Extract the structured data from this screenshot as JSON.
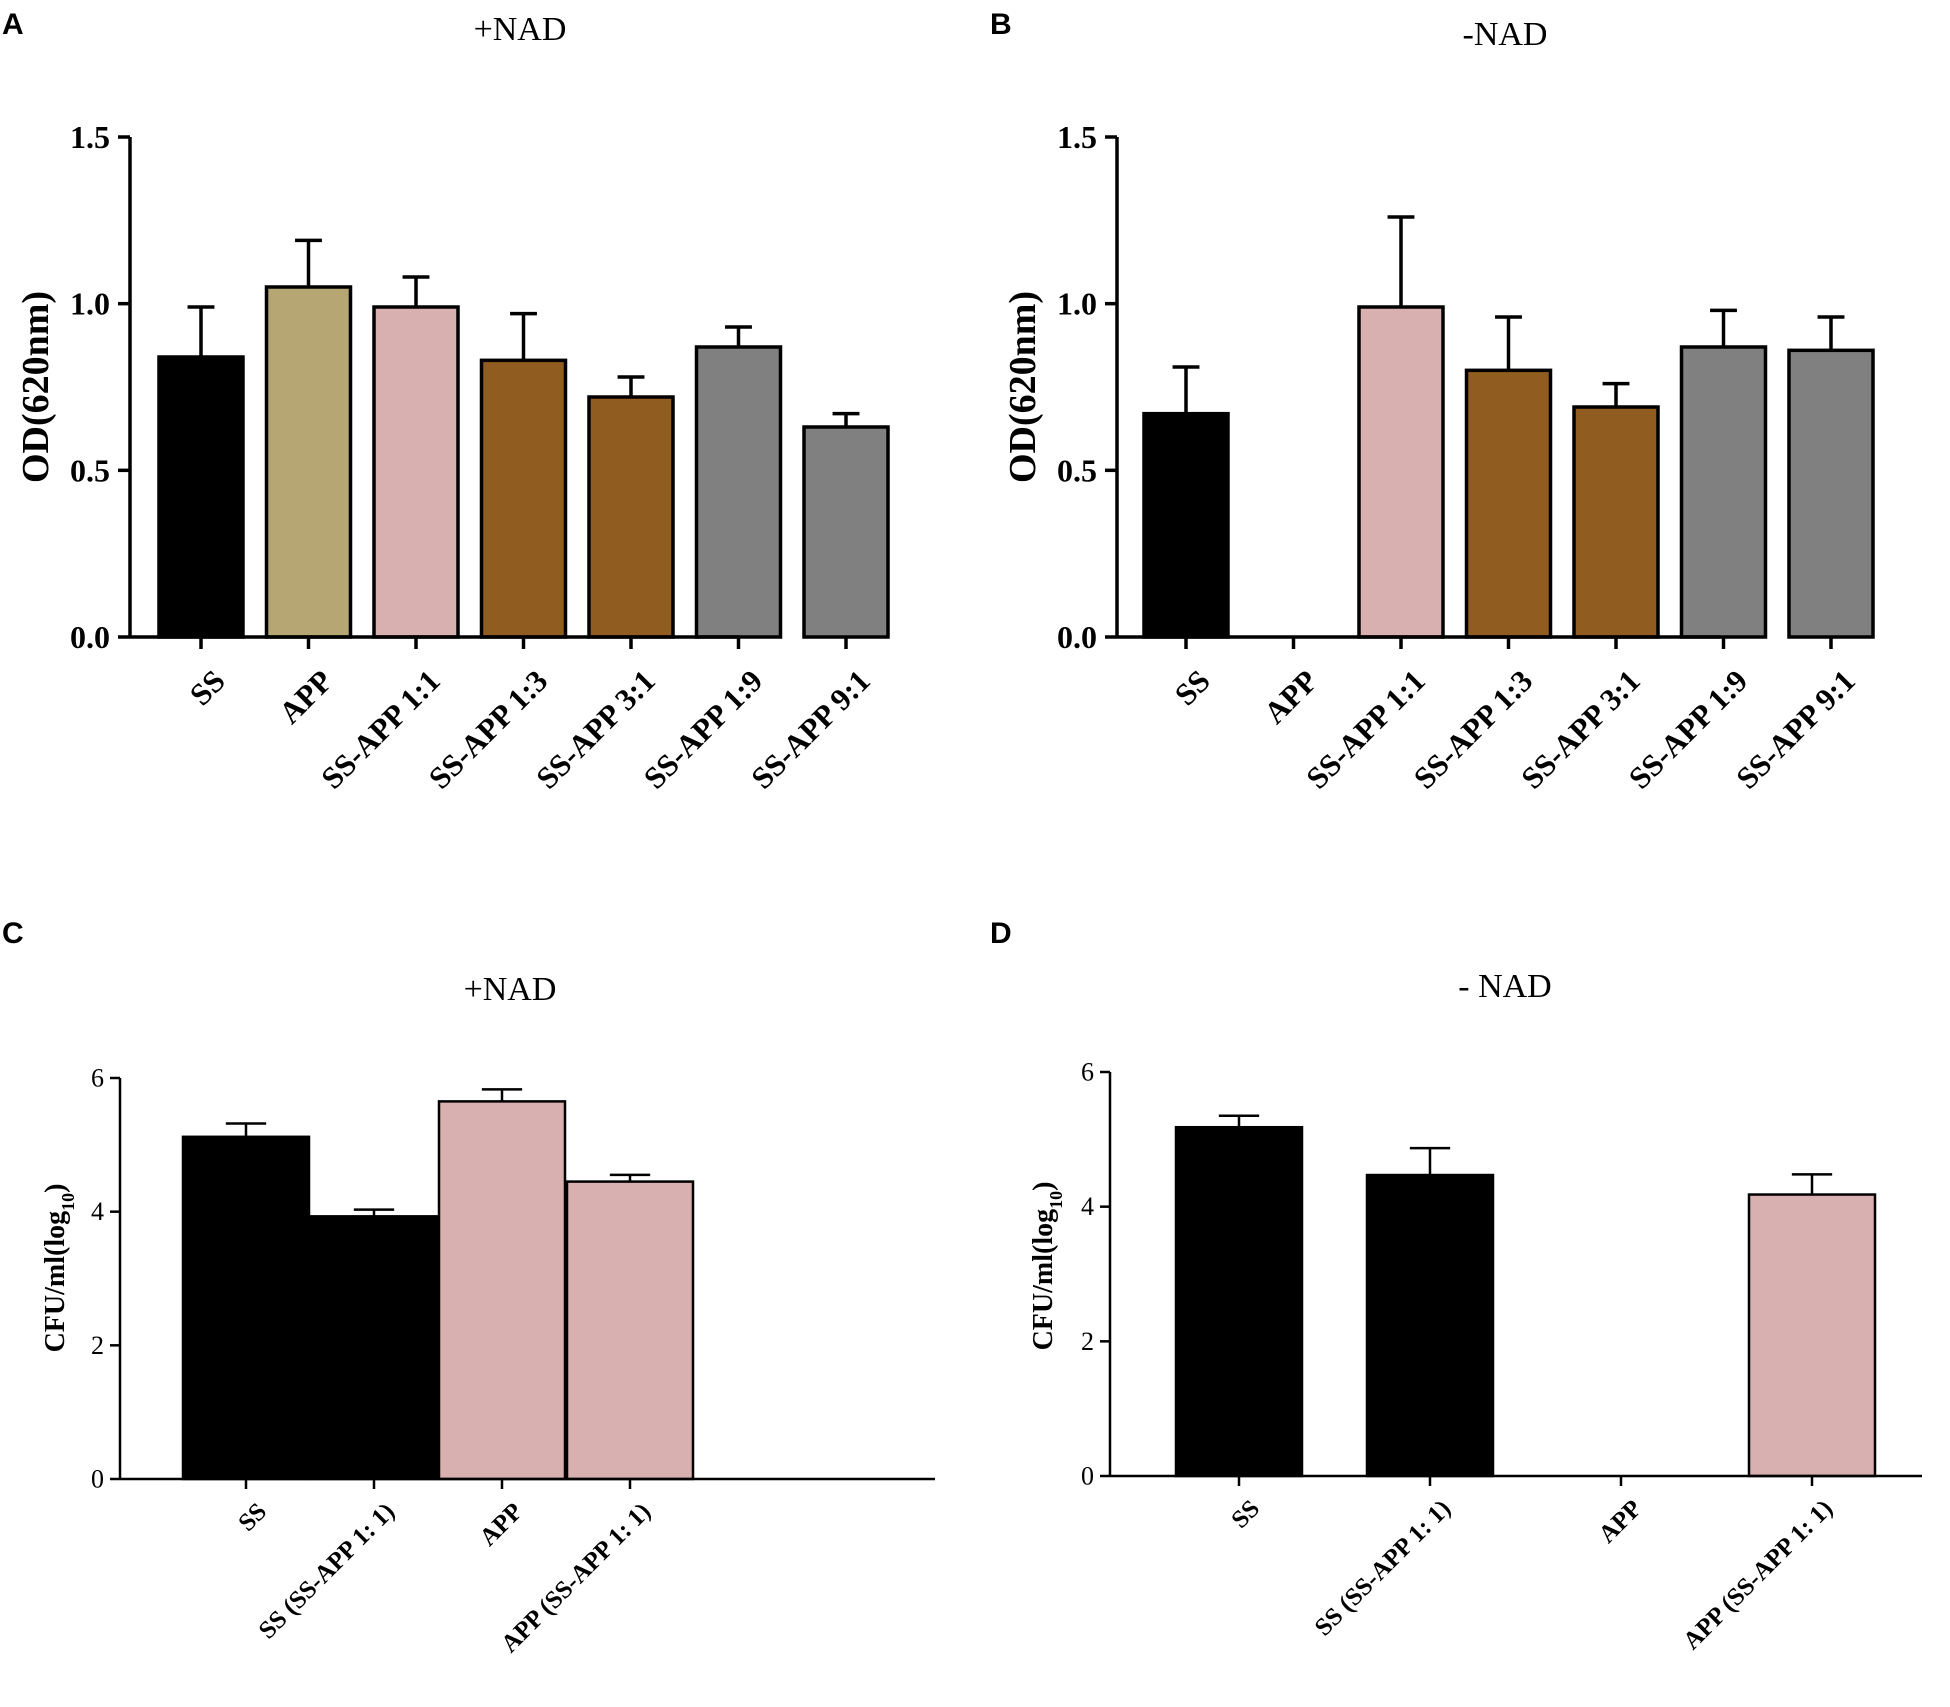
{
  "figure": {
    "panels": [
      {
        "letter": "A"
      },
      {
        "letter": "B"
      },
      {
        "letter": "C"
      },
      {
        "letter": "D"
      }
    ]
  },
  "chart_data": [
    {
      "type": "bar",
      "title": "+NAD",
      "ylabel": "OD(620nm)",
      "ylabel_sub": "",
      "ylabel_tail": "",
      "ylim": [
        0,
        1.5
      ],
      "yticks": [
        "0.0",
        "0.5",
        "1.0",
        "1.5"
      ],
      "ytick_values": [
        0,
        0.5,
        1.0,
        1.5
      ],
      "categories": [
        "SS",
        "APP",
        "SS-APP 1:1",
        "SS-APP 1:3",
        "SS-APP 3:1",
        "SS-APP 1:9",
        "SS-APP 9:1"
      ],
      "values": [
        0.84,
        1.05,
        0.99,
        0.83,
        0.72,
        0.87,
        0.63
      ],
      "errors": [
        0.15,
        0.14,
        0.09,
        0.14,
        0.06,
        0.06,
        0.04
      ],
      "colors": [
        "#000000",
        "#b5a674",
        "#d9b0b0",
        "#905c20",
        "#905c20",
        "#808080",
        "#808080"
      ]
    },
    {
      "type": "bar",
      "title": "-NAD",
      "ylabel": "OD(620nm)",
      "ylabel_sub": "",
      "ylabel_tail": "",
      "ylim": [
        0,
        1.5
      ],
      "yticks": [
        "0.0",
        "0.5",
        "1.0",
        "1.5"
      ],
      "ytick_values": [
        0,
        0.5,
        1.0,
        1.5
      ],
      "categories": [
        "SS",
        "APP",
        "SS-APP 1:1",
        "SS-APP 1:3",
        "SS-APP 3:1",
        "SS-APP 1:9",
        "SS-APP 9:1"
      ],
      "values": [
        0.67,
        0,
        0.99,
        0.8,
        0.69,
        0.87,
        0.86
      ],
      "errors": [
        0.14,
        0,
        0.27,
        0.16,
        0.07,
        0.11,
        0.1
      ],
      "colors": [
        "#000000",
        "#b5a674",
        "#d9b0b0",
        "#905c20",
        "#905c20",
        "#808080",
        "#808080"
      ]
    },
    {
      "type": "bar",
      "title": "+NAD",
      "ylabel": "CFU/ml(log",
      "ylabel_sub": "10",
      "ylabel_tail": ")",
      "ylim": [
        0,
        6
      ],
      "yticks": [
        "0",
        "2",
        "4",
        "6"
      ],
      "ytick_values": [
        0,
        2,
        4,
        6
      ],
      "categories": [
        "SS",
        "SS (SS-APP 1: 1)",
        "APP",
        "APP (SS-APP 1: 1)"
      ],
      "values": [
        5.12,
        3.93,
        5.65,
        4.45
      ],
      "errors": [
        0.2,
        0.1,
        0.18,
        0.1
      ],
      "colors": [
        "#000000",
        "#000000",
        "#d9b0b0",
        "#d9b0b0"
      ]
    },
    {
      "type": "bar",
      "title": "- NAD",
      "ylabel": "CFU/ml(log",
      "ylabel_sub": "10",
      "ylabel_tail": ")",
      "ylim": [
        0,
        6
      ],
      "yticks": [
        "0",
        "2",
        "4",
        "6"
      ],
      "ytick_values": [
        0,
        2,
        4,
        6
      ],
      "categories": [
        "SS",
        "SS (SS-APP 1: 1)",
        "APP",
        "APP (SS-APP 1: 1)"
      ],
      "values": [
        5.18,
        4.47,
        0,
        4.18
      ],
      "errors": [
        0.17,
        0.4,
        0,
        0.3
      ],
      "colors": [
        "#000000",
        "#000000",
        "#d9b0b0",
        "#d9b0b0"
      ]
    }
  ]
}
